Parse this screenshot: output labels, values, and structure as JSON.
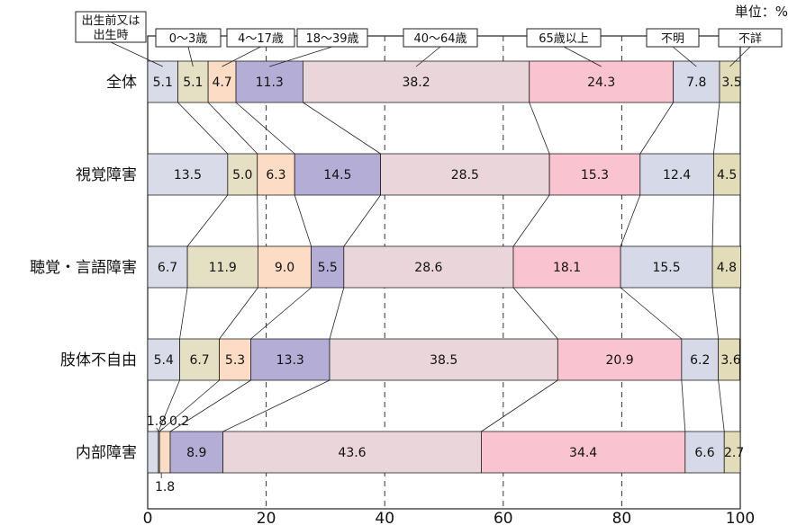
{
  "chart_data": {
    "type": "bar",
    "orientation": "horizontal",
    "stacked": true,
    "unit_label": "単位：%",
    "xlim": [
      0,
      100
    ],
    "x_ticks": [
      "0",
      "20",
      "40",
      "60",
      "80",
      "100"
    ],
    "grid": "vertical dashed at 20, 40, 60, 80",
    "categories": [
      "全体",
      "視覚障害",
      "聴覚・言語障害",
      "肢体不自由",
      "内部障害"
    ],
    "series": [
      {
        "name": "出生前又は出生時",
        "color": "#d9dce8",
        "values": [
          5.1,
          13.5,
          6.7,
          5.4,
          1.8
        ]
      },
      {
        "name": "0～3歳",
        "color": "#e5e0c4",
        "values": [
          5.1,
          5.0,
          11.9,
          6.7,
          0.2
        ]
      },
      {
        "name": "4～17歳",
        "color": "#fcdcc4",
        "values": [
          4.7,
          6.3,
          9.0,
          5.3,
          1.8
        ]
      },
      {
        "name": "18～39歳",
        "color": "#b4aed6",
        "values": [
          11.3,
          14.5,
          5.5,
          13.3,
          8.9
        ]
      },
      {
        "name": "40～64歳",
        "color": "#ead5da",
        "values": [
          38.2,
          28.5,
          28.6,
          38.5,
          43.6
        ]
      },
      {
        "name": "65歳以上",
        "color": "#f9c3cf",
        "values": [
          24.3,
          15.3,
          18.1,
          20.9,
          34.4
        ]
      },
      {
        "name": "不明",
        "color": "#d6dae8",
        "values": [
          7.8,
          12.4,
          15.5,
          6.2,
          6.6
        ]
      },
      {
        "name": "不詳",
        "color": "#e2dcb8",
        "values": [
          3.5,
          4.5,
          4.8,
          3.6,
          2.7
        ]
      }
    ]
  }
}
